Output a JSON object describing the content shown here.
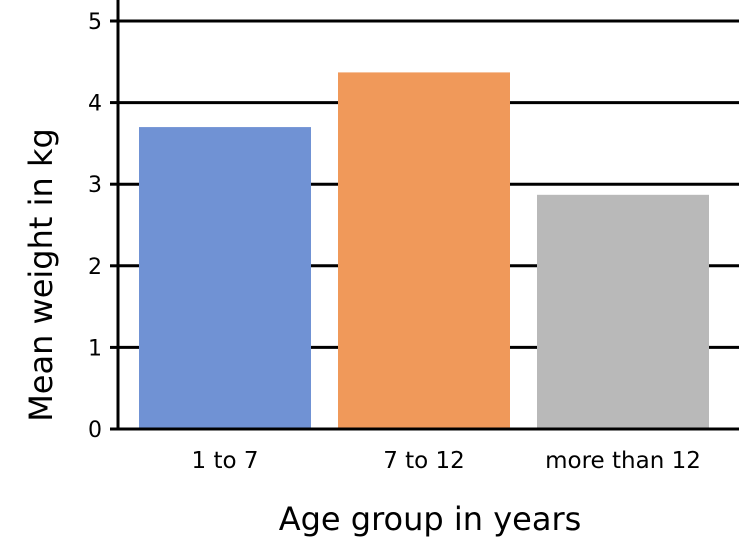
{
  "chart_data": {
    "type": "bar",
    "title": "",
    "xlabel": "Age group in years",
    "ylabel": "Mean weight in kg",
    "categories": [
      "1 to 7",
      "7 to 12",
      "more than 12"
    ],
    "values": [
      3.7,
      4.37,
      2.87
    ],
    "colors": [
      "#7092d4",
      "#f0995a",
      "#b9b9b9"
    ],
    "ylim": [
      0,
      5
    ],
    "yticks": [
      "0",
      "1",
      "2",
      "3",
      "4",
      "5"
    ],
    "grid": true,
    "legend": "none"
  }
}
